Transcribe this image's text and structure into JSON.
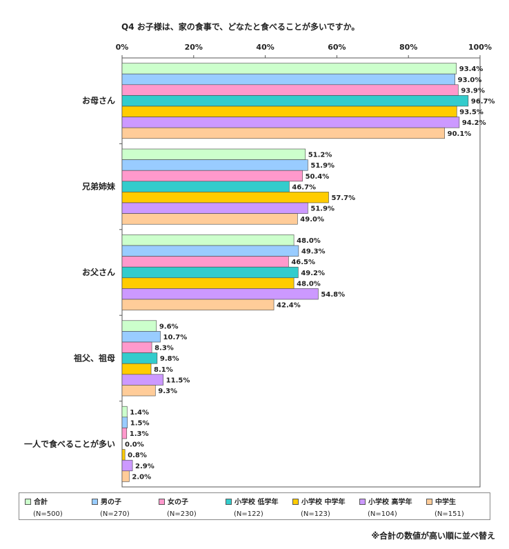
{
  "title": "Q4 お子様は、家の食事で、どなたと食べることが多いですか。",
  "footnote": "※合計の数値が高い順に並べ替え",
  "chart_data": {
    "type": "bar",
    "orientation": "horizontal",
    "xlim": [
      0,
      100
    ],
    "x_ticks": [
      "0%",
      "20%",
      "40%",
      "60%",
      "80%",
      "100%"
    ],
    "grid": false,
    "legend_position": "bottom",
    "value_suffix": "%",
    "categories": [
      "お母さん",
      "兄弟姉妹",
      "お父さん",
      "祖父、祖母",
      "一人で食べることが多い"
    ],
    "series": [
      {
        "name": "合計",
        "n": "(N=500)",
        "color": "#ccffcc",
        "values": [
          93.4,
          51.2,
          48.0,
          9.6,
          1.4
        ]
      },
      {
        "name": "男の子",
        "n": "(N=270)",
        "color": "#99ccff",
        "values": [
          93.0,
          51.9,
          49.3,
          10.7,
          1.5
        ]
      },
      {
        "name": "女の子",
        "n": "(N=230)",
        "color": "#ff99cc",
        "values": [
          93.9,
          50.4,
          46.5,
          8.3,
          1.3
        ]
      },
      {
        "name": "小学校 低学年",
        "n": "(N=122)",
        "color": "#33cccc",
        "values": [
          96.7,
          46.7,
          49.2,
          9.8,
          0.0
        ]
      },
      {
        "name": "小学校 中学年",
        "n": "(N=123)",
        "color": "#ffcc00",
        "values": [
          93.5,
          57.7,
          48.0,
          8.1,
          0.8
        ]
      },
      {
        "name": "小学校 高学年",
        "n": "(N=104)",
        "color": "#cc99ff",
        "values": [
          94.2,
          51.9,
          54.8,
          11.5,
          2.9
        ]
      },
      {
        "name": "中学生",
        "n": "(N=151)",
        "color": "#ffcc99",
        "values": [
          90.1,
          49.0,
          42.4,
          9.3,
          2.0
        ]
      }
    ]
  }
}
